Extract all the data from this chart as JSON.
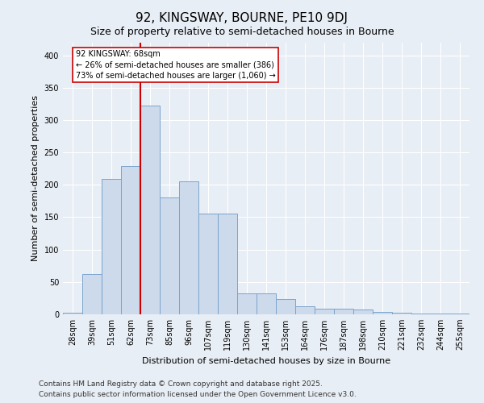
{
  "title": "92, KINGSWAY, BOURNE, PE10 9DJ",
  "subtitle": "Size of property relative to semi-detached houses in Bourne",
  "xlabel": "Distribution of semi-detached houses by size in Bourne",
  "ylabel": "Number of semi-detached properties",
  "categories": [
    "28sqm",
    "39sqm",
    "51sqm",
    "62sqm",
    "73sqm",
    "85sqm",
    "96sqm",
    "107sqm",
    "119sqm",
    "130sqm",
    "141sqm",
    "153sqm",
    "164sqm",
    "176sqm",
    "187sqm",
    "198sqm",
    "210sqm",
    "221sqm",
    "232sqm",
    "244sqm",
    "255sqm"
  ],
  "values": [
    2,
    62,
    209,
    229,
    322,
    180,
    205,
    156,
    156,
    32,
    32,
    24,
    12,
    9,
    9,
    7,
    4,
    2,
    1,
    1,
    1
  ],
  "bar_color": "#ccdaec",
  "bar_edge_color": "#7ba4cc",
  "vline_x_index": 3,
  "vline_color": "#cc0000",
  "annotation_text": "92 KINGSWAY: 68sqm\n← 26% of semi-detached houses are smaller (386)\n73% of semi-detached houses are larger (1,060) →",
  "annotation_box_facecolor": "#ffffff",
  "annotation_box_edgecolor": "#cc0000",
  "ylim": [
    0,
    420
  ],
  "yticks": [
    0,
    50,
    100,
    150,
    200,
    250,
    300,
    350,
    400
  ],
  "footer_line1": "Contains HM Land Registry data © Crown copyright and database right 2025.",
  "footer_line2": "Contains public sector information licensed under the Open Government Licence v3.0.",
  "bg_color": "#e8eef5",
  "grid_color": "#ffffff",
  "title_fontsize": 11,
  "subtitle_fontsize": 9,
  "axis_label_fontsize": 8,
  "tick_fontsize": 7,
  "annotation_fontsize": 7,
  "footer_fontsize": 6.5
}
